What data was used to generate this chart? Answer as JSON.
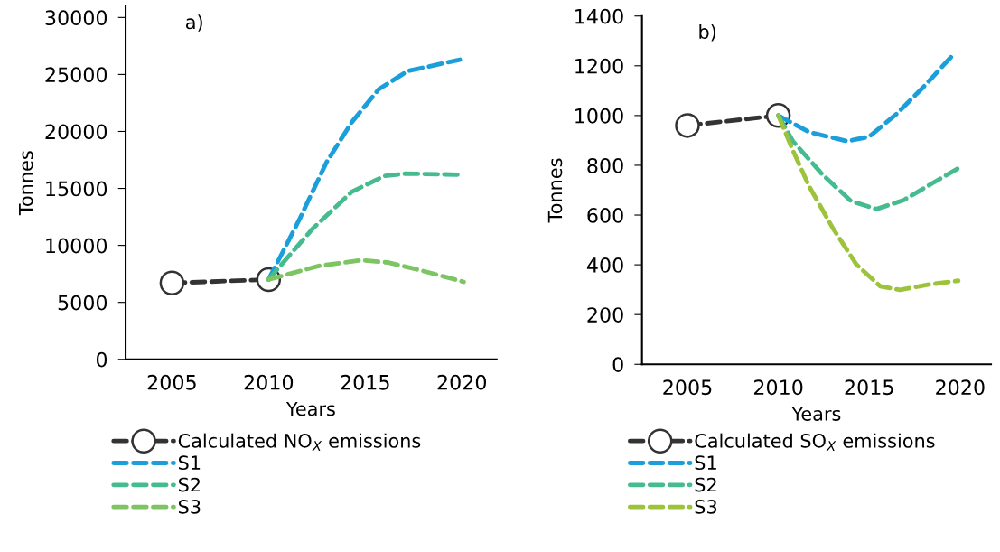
{
  "chart_data": [
    {
      "type": "line",
      "xlabel": "Years",
      "ylabel": "Tonnes",
      "annotations": [
        "a)"
      ],
      "xlim": [
        2002.6,
        2021.8
      ],
      "xticks": [
        2005,
        2010,
        2015,
        2020
      ],
      "ylim": [
        0,
        31000
      ],
      "yticks": [
        0,
        5000,
        10000,
        15000,
        20000,
        25000,
        30000
      ],
      "grid": false,
      "legend": "bottom",
      "line_style": "dashed",
      "series": [
        {
          "name": "Calculated NO$_{X}$ emissions",
          "color": "#333333",
          "marker": "circle",
          "x": [
            2005,
            2010
          ],
          "values": [
            6700,
            7000
          ]
        },
        {
          "name": "S1",
          "color": "#1a9fdb",
          "marker": "none",
          "x": [
            2010,
            2011.6,
            2013.0,
            2014.3,
            2015.7,
            2017.2,
            2019.9
          ],
          "values": [
            7000,
            12300,
            17300,
            20800,
            23700,
            25300,
            26300
          ]
        },
        {
          "name": "S2",
          "color": "#45bb8f",
          "marker": "none",
          "x": [
            2010,
            2010.5,
            2012.3,
            2014.3,
            2016.0,
            2017.1,
            2020.0
          ],
          "values": [
            7000,
            8000,
            11500,
            14700,
            16100,
            16300,
            16200
          ]
        },
        {
          "name": "S3",
          "color": "#7dc462",
          "marker": "none",
          "x": [
            2010,
            2012.6,
            2014.8,
            2016.2,
            2017.9,
            2020.1
          ],
          "values": [
            7000,
            8200,
            8700,
            8500,
            7800,
            6800
          ]
        }
      ]
    },
    {
      "type": "line",
      "xlabel": "Years",
      "ylabel": "Tonnes",
      "annotations": [
        "b)"
      ],
      "xlim": [
        2002.5,
        2021.7
      ],
      "xticks": [
        2005,
        2010,
        2015,
        2020
      ],
      "ylim": [
        0,
        1400
      ],
      "yticks": [
        0,
        200,
        400,
        600,
        800,
        1000,
        1200,
        1400
      ],
      "grid": false,
      "legend": "bottom",
      "line_style": "dashed",
      "series": [
        {
          "name": "Calculated SO$_{X}$ emissions",
          "color": "#333333",
          "marker": "circle",
          "x": [
            2005,
            2010
          ],
          "values": [
            960,
            1000
          ]
        },
        {
          "name": "S1",
          "color": "#1a9fdb",
          "marker": "none",
          "x": [
            2010,
            2011.7,
            2013.8,
            2015.0,
            2016.5,
            2018.0,
            2019.6
          ],
          "values": [
            1000,
            933,
            897,
            915,
            1006,
            1116,
            1243
          ]
        },
        {
          "name": "S2",
          "color": "#45bb8f",
          "marker": "none",
          "x": [
            2010,
            2010.8,
            2012.4,
            2014.0,
            2015.4,
            2016.9,
            2018.5,
            2019.9
          ],
          "values": [
            1000,
            897,
            765,
            656,
            624,
            660,
            729,
            788
          ]
        },
        {
          "name": "S3",
          "color": "#9dc23c",
          "marker": "none",
          "x": [
            2010,
            2010.8,
            2011.7,
            2013.0,
            2014.3,
            2015.6,
            2016.7,
            2018.3,
            2019.9
          ],
          "values": [
            1000,
            860,
            715,
            547,
            401,
            314,
            299,
            321,
            336
          ]
        }
      ]
    }
  ]
}
